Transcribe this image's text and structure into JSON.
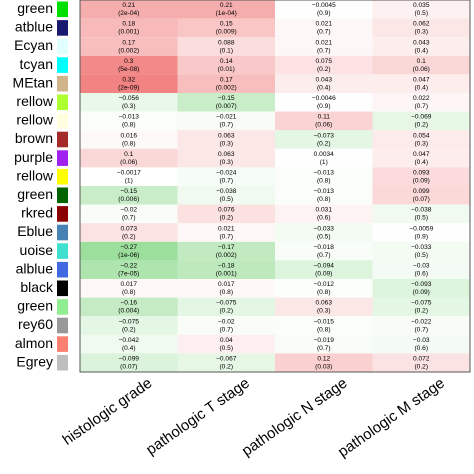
{
  "chart_data": {
    "type": "heatmap",
    "rows": [
      "green",
      "atblue",
      "Ecyan",
      "tcyan",
      "MEtan",
      "rellow",
      "rellow",
      "brown",
      "purple",
      "rellow",
      "green",
      "rkred",
      "Eblue",
      "uoise",
      "alblue",
      "black",
      "green",
      "rey60",
      "almon",
      "Egrey"
    ],
    "row_colors": [
      "#00e000",
      "#191970",
      "#e0ffff",
      "#00ffff",
      "#d2b48c",
      "#adff2f",
      "#ffffe0",
      "#a52a2a",
      "#a020f0",
      "#ffff00",
      "#006400",
      "#8b0000",
      "#4682b4",
      "#40e0d0",
      "#4169e1",
      "#000000",
      "#90ee90",
      "#999999",
      "#fa8072",
      "#bebebe"
    ],
    "columns": [
      "histologic grade",
      "pathologic T stage",
      "pathologic N stage",
      "pathologic M stage"
    ],
    "values": [
      [
        0.21,
        0.21,
        -0.0045,
        0.035
      ],
      [
        0.18,
        0.15,
        0.021,
        0.062
      ],
      [
        0.17,
        0.088,
        0.021,
        0.043
      ],
      [
        0.3,
        0.14,
        0.075,
        0.1
      ],
      [
        0.32,
        0.17,
        0.043,
        0.047
      ],
      [
        -0.056,
        -0.15,
        -0.0046,
        0.022
      ],
      [
        -0.013,
        -0.021,
        0.11,
        -0.069
      ],
      [
        0.016,
        0.063,
        -0.073,
        0.054
      ],
      [
        0.1,
        0.063,
        0.0034,
        0.047
      ],
      [
        -0.0017,
        -0.024,
        -0.013,
        0.093
      ],
      [
        -0.15,
        -0.038,
        -0.013,
        0.099
      ],
      [
        -0.02,
        0.076,
        0.031,
        -0.038
      ],
      [
        0.073,
        0.021,
        -0.033,
        -0.0059
      ],
      [
        -0.27,
        -0.17,
        -0.018,
        -0.033
      ],
      [
        -0.22,
        -0.18,
        -0.094,
        -0.03
      ],
      [
        0.017,
        0.017,
        -0.012,
        -0.093
      ],
      [
        -0.16,
        -0.075,
        0.063,
        -0.075
      ],
      [
        -0.075,
        -0.02,
        -0.015,
        -0.022
      ],
      [
        -0.042,
        0.04,
        -0.019,
        -0.03
      ],
      [
        -0.099,
        -0.067,
        0.12,
        0.072
      ]
    ],
    "value_labels": [
      [
        "0.21",
        "0.21",
        "−0.0045",
        "0.035"
      ],
      [
        "0.18",
        "0.15",
        "0.021",
        "0.062"
      ],
      [
        "0.17",
        "0.088",
        "0.021",
        "0.043"
      ],
      [
        "0.3",
        "0.14",
        "0.075",
        "0.1"
      ],
      [
        "0.32",
        "0.17",
        "0.043",
        "0.047"
      ],
      [
        "−0.056",
        "−0.15",
        "−0.0046",
        "0.022"
      ],
      [
        "−0.013",
        "−0.021",
        "0.11",
        "−0.069"
      ],
      [
        "0.016",
        "0.063",
        "−0.073",
        "0.054"
      ],
      [
        "0.1",
        "0.063",
        "0.0034",
        "0.047"
      ],
      [
        "−0.0017",
        "−0.024",
        "−0.013",
        "0.093"
      ],
      [
        "−0.15",
        "−0.038",
        "−0.013",
        "0.099"
      ],
      [
        "−0.02",
        "0.076",
        "0.031",
        "−0.038"
      ],
      [
        "0.073",
        "0.021",
        "−0.033",
        "−0.0059"
      ],
      [
        "−0.27",
        "−0.17",
        "−0.018",
        "−0.033"
      ],
      [
        "−0.22",
        "−0.18",
        "−0.094",
        "−0.03"
      ],
      [
        "0.017",
        "0.017",
        "−0.012",
        "−0.093"
      ],
      [
        "−0.16",
        "−0.075",
        "0.063",
        "−0.075"
      ],
      [
        "−0.075",
        "−0.02",
        "−0.015",
        "−0.022"
      ],
      [
        "−0.042",
        "0.04",
        "−0.019",
        "−0.03"
      ],
      [
        "−0.099",
        "−0.067",
        "0.12",
        "0.072"
      ]
    ],
    "p_labels": [
      [
        "(2e-04)",
        "(1e-04)",
        "(0.9)",
        "(0.5)"
      ],
      [
        "(0.001)",
        "(0.009)",
        "(0.7)",
        "(0.3)"
      ],
      [
        "(0.002)",
        "(0.1)",
        "(0.7)",
        "(0.4)"
      ],
      [
        "(5e-08)",
        "(0.01)",
        "(0.2)",
        "(0.06)"
      ],
      [
        "(2e-09)",
        "(0.002)",
        "(0.4)",
        "(0.4)"
      ],
      [
        "(0.3)",
        "(0.007)",
        "(0.9)",
        "(0.7)"
      ],
      [
        "(0.8)",
        "(0.7)",
        "(0.06)",
        "(0.2)"
      ],
      [
        "(0.8)",
        "(0.3)",
        "(0.2)",
        "(0.3)"
      ],
      [
        "(0.06)",
        "(0.3)",
        "(1)",
        "(0.4)"
      ],
      [
        "(1)",
        "(0.7)",
        "(0.8)",
        "(0.09)"
      ],
      [
        "(0.006)",
        "(0.5)",
        "(0.8)",
        "(0.07)"
      ],
      [
        "(0.7)",
        "(0.2)",
        "(0.6)",
        "(0.5)"
      ],
      [
        "(0.2)",
        "(0.7)",
        "(0.5)",
        "(0.9)"
      ],
      [
        "(1e-06)",
        "(0.002)",
        "(0.7)",
        "(0.5)"
      ],
      [
        "(7e-05)",
        "(0.001)",
        "(0.09)",
        "(0.6)"
      ],
      [
        "(0.8)",
        "(0.8)",
        "(0.8)",
        "(0.09)"
      ],
      [
        "(0.004)",
        "(0.2)",
        "(0.3)",
        "(0.2)"
      ],
      [
        "(0.2)",
        "(0.7)",
        "(0.8)",
        "(0.7)"
      ],
      [
        "(0.4)",
        "(0.5)",
        "(0.7)",
        "(0.6)"
      ],
      [
        "(0.07)",
        "(0.2)",
        "(0.03)",
        "(0.2)"
      ]
    ]
  }
}
